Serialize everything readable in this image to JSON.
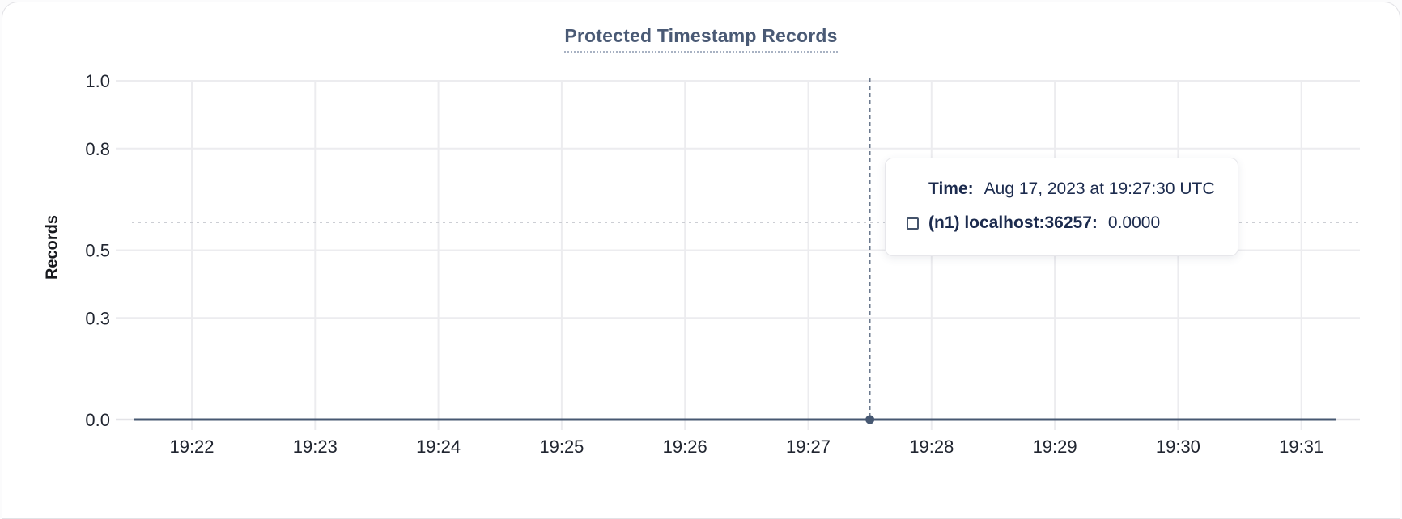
{
  "card": {
    "title": "Protected Timestamp Records"
  },
  "colors": {
    "series_line": "#475872",
    "crosshair_vertical": "#475872",
    "crosshair_horizontal": "#c5c8ce",
    "gridline": "#ececef",
    "axis_line": "#e3e3e7",
    "tick_text": "#212631",
    "title_text": "#4a5a75",
    "tooltip_text": "#1c2b4e"
  },
  "tooltip": {
    "time_label": "Time:",
    "time_value": "Aug 17, 2023 at 19:27:30 UTC",
    "series_label": "(n1) localhost:36257:",
    "series_value": "0.0000"
  },
  "chart_data": {
    "type": "line",
    "title": "Protected Timestamp Records",
    "xlabel": "",
    "ylabel": "Records",
    "ylim": [
      0,
      1
    ],
    "y_ticks": [
      "0.0",
      "0.3",
      "0.5",
      "0.8",
      "1.0"
    ],
    "x_ticks": [
      "19:22",
      "19:23",
      "19:24",
      "19:25",
      "19:26",
      "19:27",
      "19:28",
      "19:29",
      "19:30",
      "19:31"
    ],
    "x_range": [
      "19:21:32",
      "19:31:17"
    ],
    "grid": true,
    "legend_position": "tooltip",
    "series": [
      {
        "name": "(n1) localhost:36257",
        "color": "#475872",
        "points": [
          [
            "19:21:32",
            0
          ],
          [
            "19:22:00",
            0
          ],
          [
            "19:23:00",
            0
          ],
          [
            "19:24:00",
            0
          ],
          [
            "19:25:00",
            0
          ],
          [
            "19:26:00",
            0
          ],
          [
            "19:27:00",
            0
          ],
          [
            "19:27:30",
            0
          ],
          [
            "19:28:00",
            0
          ],
          [
            "19:29:00",
            0
          ],
          [
            "19:30:00",
            0
          ],
          [
            "19:31:00",
            0
          ],
          [
            "19:31:17",
            0
          ]
        ]
      }
    ],
    "hover": {
      "date": "Aug 17, 2023",
      "time": "19:27:30",
      "value": 0
    }
  }
}
